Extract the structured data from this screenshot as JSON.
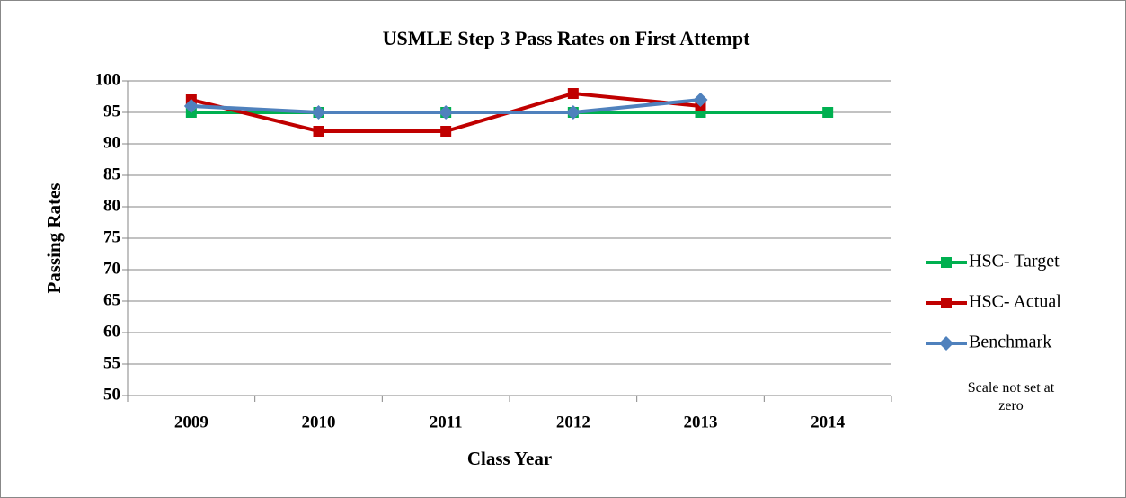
{
  "chart_data": {
    "type": "line",
    "title": "USMLE Step 3 Pass Rates on First Attempt",
    "x_label": "Class Year",
    "y_label": "Passing  Rates",
    "annotation": "Scale not set at zero",
    "categories": [
      "2009",
      "2010",
      "2011",
      "2012",
      "2013",
      "2014"
    ],
    "series": [
      {
        "name": "HSC- Target",
        "color": "#00b050",
        "marker": "square",
        "values": [
          95,
          95,
          95,
          95,
          95,
          95
        ]
      },
      {
        "name": "HSC- Actual",
        "color": "#c00000",
        "marker": "square",
        "values": [
          97,
          92,
          92,
          98,
          96,
          null
        ]
      },
      {
        "name": "Benchmark",
        "color": "#4f81bd",
        "marker": "diamond",
        "values": [
          96,
          95,
          95,
          95,
          97,
          null
        ]
      }
    ],
    "ylim": [
      50,
      100
    ],
    "yticks": [
      50,
      55,
      60,
      65,
      70,
      75,
      80,
      85,
      90,
      95,
      100
    ],
    "grid": true,
    "legend": "right"
  }
}
